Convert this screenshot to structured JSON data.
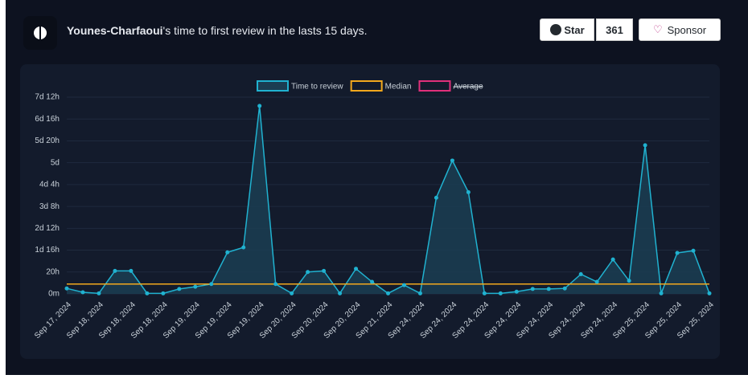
{
  "header": {
    "owner": "Younes-Charfaoui",
    "title_rest": "'s time to first review in the lasts 15 days.",
    "star": "Star",
    "star_count": "361",
    "sponsor": "Sponsor"
  },
  "chart_data": {
    "type": "line",
    "categories": [
      "Sep 17, 2024",
      null,
      "Sep 18, 2024",
      null,
      "Sep 18, 2024",
      null,
      "Sep 18, 2024",
      null,
      "Sep 19, 2024",
      null,
      "Sep 19, 2024",
      null,
      "Sep 19, 2024",
      null,
      "Sep 20, 2024",
      null,
      "Sep 20, 2024",
      null,
      "Sep 20, 2024",
      null,
      "Sep 21, 2024",
      null,
      "Sep 24, 2024",
      null,
      "Sep 24, 2024",
      null,
      "Sep 24, 2024",
      null,
      "Sep 24, 2024",
      null,
      "Sep 24, 2024",
      null,
      "Sep 24, 2024",
      null,
      "Sep 24, 2024",
      null,
      "Sep 25, 2024",
      null,
      "Sep 25, 2024",
      null,
      "Sep 25, 2024"
    ],
    "series": [
      {
        "name": "Time to review",
        "color": "#20b2d0",
        "values": [
          5,
          1.5,
          0.5,
          21,
          21,
          0.5,
          0.5,
          4.5,
          6.5,
          9,
          38,
          42.5,
          172,
          9,
          0.5,
          20,
          21,
          0.5,
          23,
          11,
          0.5,
          8,
          0.5,
          88,
          122,
          93,
          0.5,
          0.5,
          2,
          4.5,
          4.5,
          5,
          18,
          11,
          31.5,
          12,
          136,
          0.5,
          37.5,
          39.5,
          0.5
        ]
      },
      {
        "name": "Median",
        "color": "#f2a81d",
        "value": 9
      },
      {
        "name": "Average",
        "color": "#e0307a",
        "hidden": true
      }
    ],
    "ylim": [
      0,
      180
    ],
    "yticks": [
      {
        "value": 0,
        "label": "0m"
      },
      {
        "value": 20,
        "label": "20h"
      },
      {
        "value": 40,
        "label": "1d 16h"
      },
      {
        "value": 60,
        "label": "2d 12h"
      },
      {
        "value": 80,
        "label": "3d 8h"
      },
      {
        "value": 100,
        "label": "4d 4h"
      },
      {
        "value": 120,
        "label": "5d"
      },
      {
        "value": 140,
        "label": "5d 20h"
      },
      {
        "value": 160,
        "label": "6d 16h"
      },
      {
        "value": 180,
        "label": "7d 12h"
      }
    ],
    "grid": true
  }
}
